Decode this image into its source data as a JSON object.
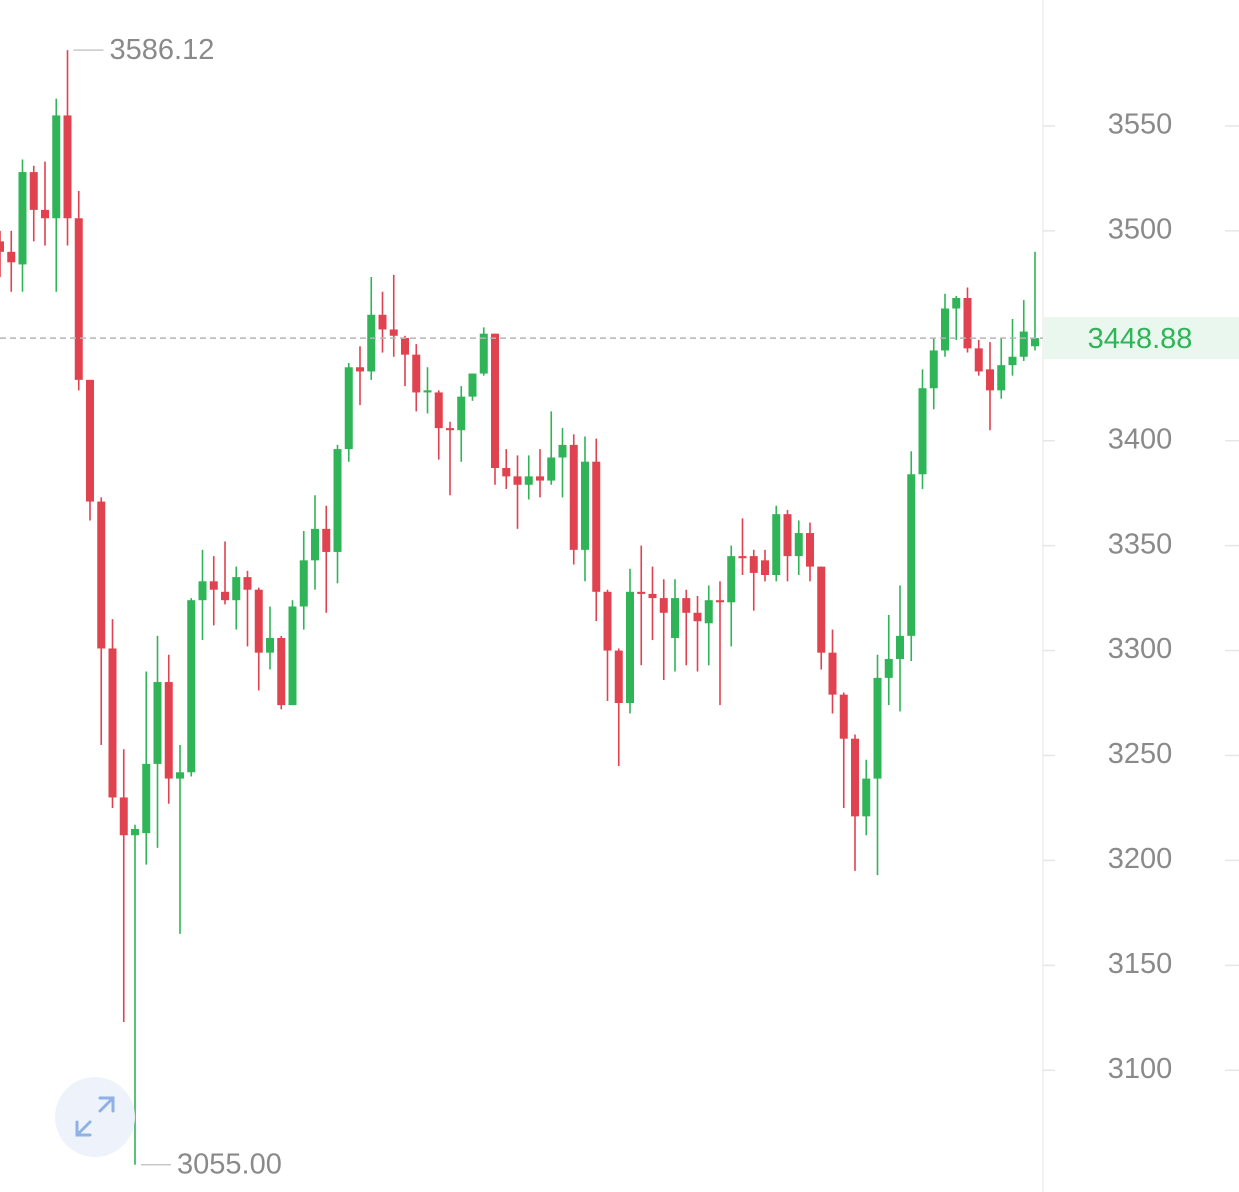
{
  "chart_data": {
    "type": "candlestick",
    "open": [
      3495,
      3490,
      3484,
      3528,
      3510,
      3506,
      3555,
      3506,
      3429,
      3371,
      3301,
      3230,
      3212,
      3213,
      3246,
      3285,
      3239,
      3242,
      3324,
      3333,
      3328,
      3324,
      3335,
      3329,
      3299,
      3306,
      3274,
      3321,
      3343,
      3358,
      3347,
      3396,
      3435,
      3433,
      3460,
      3453,
      3449,
      3441,
      3423,
      3423,
      3406,
      3405,
      3421,
      3432,
      3451,
      3387,
      3383,
      3379,
      3383,
      3381,
      3392,
      3398,
      3348,
      3390,
      3328,
      3300,
      3275,
      3328,
      3327,
      3325,
      3306,
      3325,
      3318,
      3313,
      3324,
      3323,
      3345,
      3345,
      3343,
      3336,
      3365,
      3345,
      3356,
      3340,
      3299,
      3279,
      3258,
      3221,
      3239,
      3287,
      3296,
      3307,
      3384,
      3425,
      3443,
      3463,
      3468,
      3444,
      3434,
      3424,
      3436,
      3440,
      3445
    ],
    "high": [
      3500,
      3500,
      3534,
      3531,
      3533,
      3563,
      3586.12,
      3519,
      3429,
      3373,
      3315,
      3253,
      3217,
      3290,
      3307,
      3298,
      3255,
      3325,
      3348,
      3345,
      3352,
      3340,
      3338,
      3330,
      3321,
      3307,
      3324,
      3357,
      3374,
      3369,
      3398,
      3437,
      3445,
      3478,
      3471,
      3479,
      3450,
      3446,
      3435,
      3424,
      3409,
      3426,
      3432,
      3454,
      3451,
      3396,
      3393,
      3393,
      3396,
      3414,
      3406,
      3403,
      3402,
      3401,
      3329,
      3301,
      3339,
      3350,
      3340,
      3334,
      3334,
      3329,
      3326,
      3331,
      3333,
      3350,
      3363,
      3348,
      3348,
      3369,
      3367,
      3362,
      3361,
      3340,
      3310,
      3280,
      3260,
      3248,
      3298,
      3317,
      3331,
      3395,
      3434,
      3449,
      3470,
      3469,
      3473,
      3448,
      3447,
      3449,
      3458,
      3467,
      3490
    ],
    "low": [
      3478,
      3471,
      3471,
      3495,
      3493,
      3471,
      3493,
      3424,
      3362,
      3255,
      3225,
      3123,
      3055,
      3198,
      3206,
      3227,
      3165,
      3240,
      3305,
      3312,
      3322,
      3310,
      3302,
      3281,
      3291,
      3272,
      3274,
      3310,
      3329,
      3318,
      3332,
      3390,
      3417,
      3429,
      3442,
      3440,
      3426,
      3414,
      3413,
      3391,
      3374,
      3390,
      3419,
      3431,
      3379,
      3377,
      3358,
      3372,
      3373,
      3379,
      3373,
      3341,
      3333,
      3314,
      3276,
      3245,
      3270,
      3293,
      3305,
      3286,
      3290,
      3293,
      3290,
      3293,
      3274,
      3302,
      3336,
      3319,
      3333,
      3333,
      3333,
      3336,
      3333,
      3291,
      3270,
      3225,
      3195,
      3212,
      3193,
      3274,
      3271,
      3295,
      3377,
      3415,
      3440,
      3448,
      3442,
      3431,
      3405,
      3420,
      3431,
      3438,
      3443
    ],
    "close": [
      3490,
      3485,
      3528,
      3510,
      3506,
      3555,
      3506,
      3429,
      3371,
      3301,
      3230,
      3212,
      3215,
      3246,
      3285,
      3239,
      3242,
      3324,
      3333,
      3329,
      3324,
      3335,
      3329,
      3299,
      3306,
      3274,
      3321,
      3343,
      3358,
      3347,
      3396,
      3435,
      3433,
      3460,
      3453,
      3450,
      3441,
      3423,
      3424,
      3406,
      3405,
      3421,
      3432,
      3451,
      3387,
      3383,
      3379,
      3383,
      3381,
      3392,
      3398,
      3348,
      3390,
      3328,
      3300,
      3275,
      3328,
      3327,
      3325,
      3318,
      3325,
      3318,
      3314,
      3324,
      3323,
      3345,
      3344,
      3337,
      3336,
      3365,
      3345,
      3356,
      3340,
      3299,
      3279,
      3258,
      3221,
      3239,
      3287,
      3296,
      3307,
      3384,
      3425,
      3443,
      3463,
      3468,
      3444,
      3433,
      3424,
      3436,
      3440,
      3452,
      3448.88
    ],
    "up_color": "#2fb457",
    "down_color": "#e1424f",
    "ylim": [
      3042,
      3610
    ],
    "yticks": [
      3100,
      3150,
      3200,
      3250,
      3300,
      3350,
      3400,
      3450,
      3500,
      3550
    ],
    "last_price": 3448.88,
    "last_price_color": "#2fb457",
    "annotations": [
      {
        "value": 3586.12,
        "label": "3586.12"
      },
      {
        "value": 3055,
        "label": "3055.00"
      }
    ]
  }
}
